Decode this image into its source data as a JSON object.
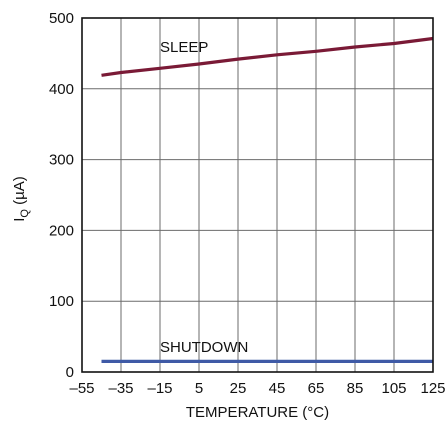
{
  "chart_data": {
    "type": "line",
    "title": "",
    "xlabel": "TEMPERATURE (°C)",
    "ylabel_main": "I",
    "ylabel_sub": "Q",
    "ylabel_unit": " (µA)",
    "xlim": [
      -55,
      125
    ],
    "ylim": [
      0,
      500
    ],
    "x_ticks": [
      -55,
      -35,
      -15,
      5,
      25,
      45,
      65,
      85,
      105,
      125
    ],
    "x_tick_labels": [
      "–55",
      "–35",
      "–15",
      "5",
      "25",
      "45",
      "65",
      "85",
      "105",
      "125"
    ],
    "y_ticks": [
      0,
      100,
      200,
      300,
      400,
      500
    ],
    "y_tick_labels": [
      "0",
      "100",
      "200",
      "300",
      "400",
      "500"
    ],
    "grid": true,
    "series": [
      {
        "name": "SLEEP",
        "color": "#7a1a36",
        "label_at": [
          -15,
          452
        ],
        "x": [
          -45,
          -35,
          -15,
          5,
          25,
          45,
          65,
          85,
          105,
          125
        ],
        "y": [
          419,
          423,
          429,
          435,
          442,
          448,
          453,
          459,
          464,
          471
        ]
      },
      {
        "name": "SHUTDOWN",
        "color": "#3f5aa6",
        "label_at": [
          -15,
          28
        ],
        "x": [
          -45,
          -35,
          -15,
          5,
          25,
          45,
          65,
          85,
          105,
          125
        ],
        "y": [
          15,
          15,
          15,
          15,
          15,
          15,
          15,
          15,
          15,
          15
        ]
      }
    ]
  }
}
